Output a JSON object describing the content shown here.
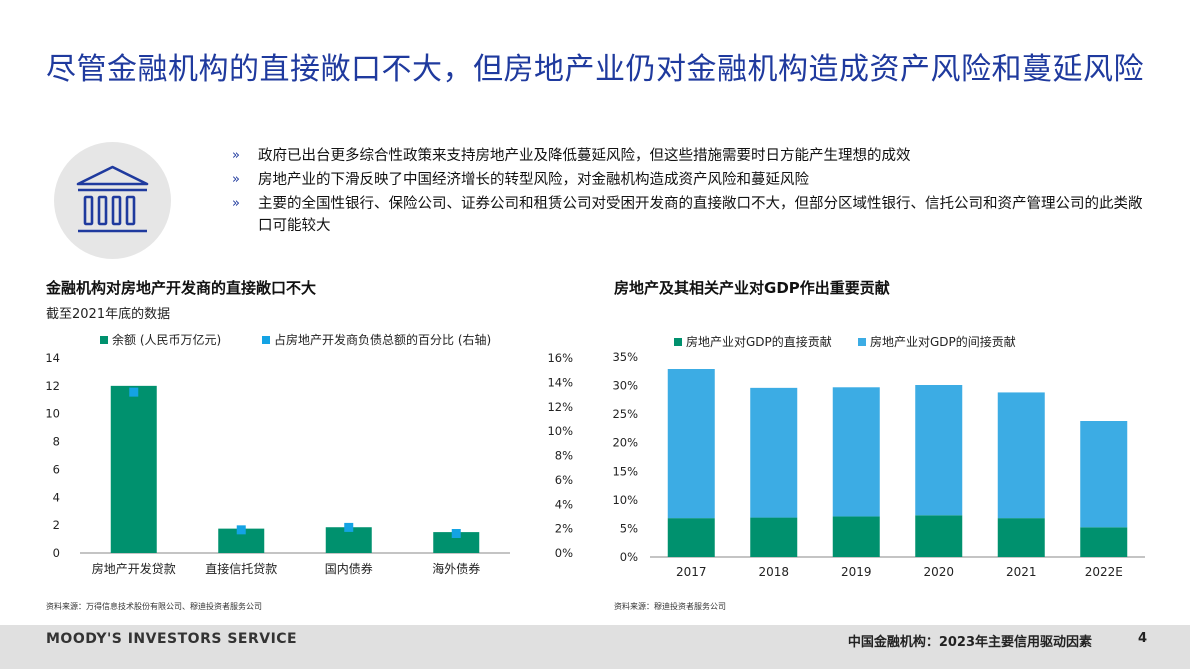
{
  "slide": {
    "title": "尽管金融机构的直接敞口不大，但房地产业仍对金融机构造成资产风险和蔓延风险",
    "icon": "bank-building-icon",
    "bullet_mark": "»",
    "bullets": [
      "政府已出台更多综合性政策来支持房地产业及降低蔓延风险，但这些措施需要时日方能产生理想的成效",
      "房地产业的下滑反映了中国经济增长的转型风险，对金融机构造成资产风险和蔓延风险",
      "主要的全国性银行、保险公司、证券公司和租赁公司对受困开发商的直接敞口不大，但部分区域性银行、信托公司和资产管理公司的此类敞口可能较大"
    ],
    "footer": {
      "brand": "MOODY'S INVESTORS SERVICE",
      "doc_title": "中国金融机构：2023年主要信用驱动因素",
      "page": "4"
    }
  },
  "colors": {
    "title_blue": "#1f3a9e",
    "green": "#00916e",
    "light_blue": "#3cace4",
    "marker_blue": "#14a3e4"
  },
  "chart_data": [
    {
      "type": "bar",
      "title": "金融机构对房地产开发商的直接敞口不大",
      "subtitle": "截至2021年底的数据",
      "categories": [
        "房地产开发贷款",
        "直接信托贷款",
        "国内债券",
        "海外债券"
      ],
      "series": [
        {
          "name": "余额 (人民币万亿元)",
          "type": "bar",
          "axis": "left",
          "values": [
            12.0,
            1.75,
            1.85,
            1.5
          ]
        },
        {
          "name": "占房地产开发商负债总额的百分比 (右轴)",
          "type": "marker",
          "axis": "right",
          "values": [
            13.2,
            1.9,
            2.1,
            1.6
          ]
        }
      ],
      "y_left": {
        "range": [
          0,
          14
        ],
        "ticks": [
          "0",
          "2",
          "4",
          "6",
          "8",
          "10",
          "12",
          "14"
        ]
      },
      "y_right": {
        "range": [
          0,
          16
        ],
        "ticks": [
          "0%",
          "2%",
          "4%",
          "6%",
          "8%",
          "10%",
          "12%",
          "14%",
          "16%"
        ]
      },
      "grid": false,
      "legend": "top",
      "source": "资料来源：万得信息技术股份有限公司、穆迪投资者服务公司"
    },
    {
      "type": "bar",
      "stacked": true,
      "title": "房地产及其相关产业对GDP作出重要贡献",
      "categories": [
        "2017",
        "2018",
        "2019",
        "2020",
        "2021",
        "2022E"
      ],
      "series": [
        {
          "name": "房地产业对GDP的直接贡献",
          "values": [
            6.8,
            6.9,
            7.1,
            7.3,
            6.8,
            5.2
          ]
        },
        {
          "name": "房地产业对GDP的间接贡献",
          "values": [
            26.1,
            22.7,
            22.6,
            22.8,
            22.0,
            18.6
          ]
        }
      ],
      "y": {
        "range": [
          0,
          35
        ],
        "ticks": [
          "0%",
          "5%",
          "10%",
          "15%",
          "20%",
          "25%",
          "30%",
          "35%"
        ]
      },
      "grid": false,
      "legend": "top",
      "source": "资料来源：穆迪投资者服务公司"
    }
  ]
}
